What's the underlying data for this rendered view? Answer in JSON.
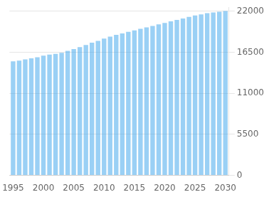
{
  "chart_data": {
    "type": "bar",
    "x": [
      1995,
      1996,
      1997,
      1998,
      1999,
      2000,
      2001,
      2002,
      2003,
      2004,
      2005,
      2006,
      2007,
      2008,
      2009,
      2010,
      2011,
      2012,
      2013,
      2014,
      2015,
      2016,
      2017,
      2018,
      2019,
      2020,
      2021,
      2022,
      2023,
      2024,
      2025,
      2026,
      2027,
      2028,
      2029,
      2030
    ],
    "values": [
      15300,
      15400,
      15550,
      15700,
      15850,
      16050,
      16200,
      16300,
      16450,
      16700,
      16950,
      17200,
      17500,
      17800,
      18050,
      18350,
      18600,
      18850,
      19050,
      19250,
      19450,
      19650,
      19850,
      20050,
      20250,
      20450,
      20650,
      20850,
      21050,
      21250,
      21450,
      21600,
      21750,
      21850,
      21950,
      22050
    ],
    "xlim": [
      1994.4,
      2030.6
    ],
    "xticks": [
      1995,
      2000,
      2005,
      2010,
      2015,
      2020,
      2025,
      2030
    ],
    "ylim": [
      0,
      22550
    ],
    "yticks": [
      0,
      5500,
      11000,
      16500,
      22000
    ],
    "grid": true
  }
}
